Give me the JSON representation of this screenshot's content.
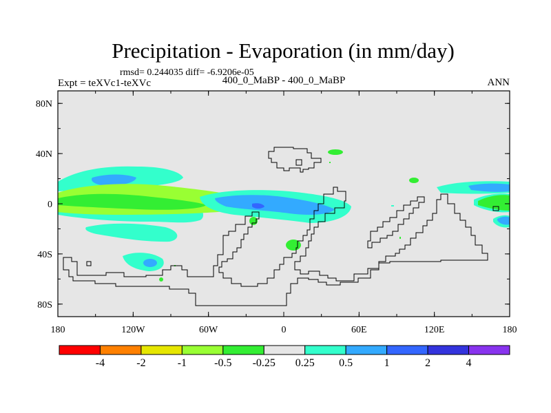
{
  "chart_data": {
    "type": "contour-map",
    "title": "Precipitation - Evaporation (in mm/day)",
    "stats": "rmsd= 0.244035 diff= -6.9206e-05",
    "left_label": "Expt = teXVc1-teXVc",
    "center_label": "400_0_MaBP - 400_0_MaBP",
    "right_label": "ANN",
    "xaxis": {
      "range": [
        -180,
        180
      ],
      "ticks": [
        {
          "value": -180,
          "label": "180"
        },
        {
          "value": -120,
          "label": "120W"
        },
        {
          "value": -60,
          "label": "60W"
        },
        {
          "value": 0,
          "label": "0"
        },
        {
          "value": 60,
          "label": "60E"
        },
        {
          "value": 120,
          "label": "120E"
        },
        {
          "value": 180,
          "label": "180"
        }
      ]
    },
    "yaxis": {
      "range": [
        -90,
        90
      ],
      "ticks": [
        {
          "value": 80,
          "label": "80N"
        },
        {
          "value": 40,
          "label": "40N"
        },
        {
          "value": 0,
          "label": "0"
        },
        {
          "value": -40,
          "label": "40S"
        },
        {
          "value": -80,
          "label": "80S"
        }
      ]
    },
    "colorbar": {
      "colors": [
        "#ff0000",
        "#ff8000",
        "#e6e600",
        "#99ff33",
        "#33ee33",
        "#e6e6e6",
        "#33ffcc",
        "#33aaff",
        "#3366ff",
        "#3333dd",
        "#8833ee"
      ],
      "labels": [
        "-4",
        "-2",
        "-1",
        "-0.5",
        "-0.25",
        "0.25",
        "0.5",
        "1",
        "2",
        "4"
      ]
    },
    "field_background": "#e6e6e6"
  }
}
